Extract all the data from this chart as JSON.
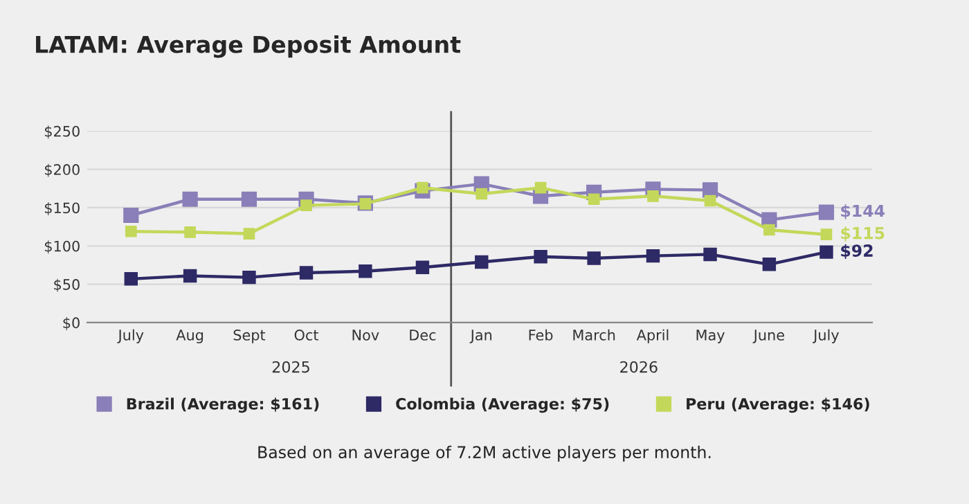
{
  "chart_data": {
    "type": "line",
    "title": "LATAM: Average Deposit Amount",
    "x": [
      "2025-07",
      "2025-08",
      "2025-09",
      "2025-10",
      "2025-11",
      "2025-12",
      "2026-01",
      "2026-02",
      "2026-03",
      "2026-04",
      "2026-05",
      "2026-06",
      "2026-07"
    ],
    "xlim": [
      "2025-06-08",
      "2026-07-25"
    ],
    "xticks": [
      {
        "value": "2025-07",
        "label": "July"
      },
      {
        "value": "2025-08",
        "label": "Aug"
      },
      {
        "value": "2025-09",
        "label": "Sept"
      },
      {
        "value": "2025-10",
        "label": "Oct"
      },
      {
        "value": "2025-11",
        "label": "Nov"
      },
      {
        "value": "2025-12",
        "label": "Dec"
      },
      {
        "value": "2026-01",
        "label": "Jan"
      },
      {
        "value": "2026-02",
        "label": "Feb"
      },
      {
        "value": "2026-03",
        "label": "March"
      },
      {
        "value": "2026-04",
        "label": "April"
      },
      {
        "value": "2026-05",
        "label": "May"
      },
      {
        "value": "2026-06",
        "label": "June"
      },
      {
        "value": "2026-07",
        "label": "July"
      }
    ],
    "ylim": [
      0,
      250
    ],
    "yticks": [
      {
        "value": 0,
        "label": "$0"
      },
      {
        "value": 50,
        "label": "$50"
      },
      {
        "value": 100,
        "label": "$100"
      },
      {
        "value": 150,
        "label": "$150"
      },
      {
        "value": 200,
        "label": "$200"
      },
      {
        "value": 250,
        "label": "$250"
      }
    ],
    "series": [
      {
        "name": "Brazil (Average: $161)",
        "color": "#8a7fb8",
        "values": [
          140,
          161,
          161,
          161,
          156,
          172,
          181,
          165,
          170,
          174,
          173,
          134,
          144
        ],
        "value_labels": [
          null,
          null,
          null,
          null,
          null,
          null,
          null,
          null,
          null,
          null,
          null,
          null,
          "$144"
        ]
      },
      {
        "name": "Colombia (Average: $75)",
        "color": "#2e2a66",
        "values": [
          57,
          61,
          59,
          65,
          67,
          72,
          79,
          86,
          84,
          87,
          89,
          76,
          92
        ],
        "value_labels": [
          null,
          null,
          null,
          null,
          null,
          null,
          null,
          null,
          null,
          null,
          null,
          null,
          "$92"
        ]
      },
      {
        "name": "Peru (Average: $146)",
        "color": "#c3d85a",
        "values": [
          119,
          118,
          116,
          153,
          155,
          176,
          168,
          176,
          161,
          165,
          159,
          121,
          115
        ],
        "value_labels": [
          null,
          null,
          null,
          null,
          null,
          null,
          null,
          null,
          null,
          null,
          null,
          null,
          "$115"
        ]
      }
    ],
    "ref_lines": [
      {
        "axis": "x",
        "value": "2025-12-16",
        "color": "#555555"
      }
    ],
    "annotations": [
      "2025",
      "2026",
      "Based on an average of 7.2M active players per month."
    ],
    "marker": "square",
    "line_style": "solid",
    "grid": "y",
    "legend": "bottom"
  }
}
